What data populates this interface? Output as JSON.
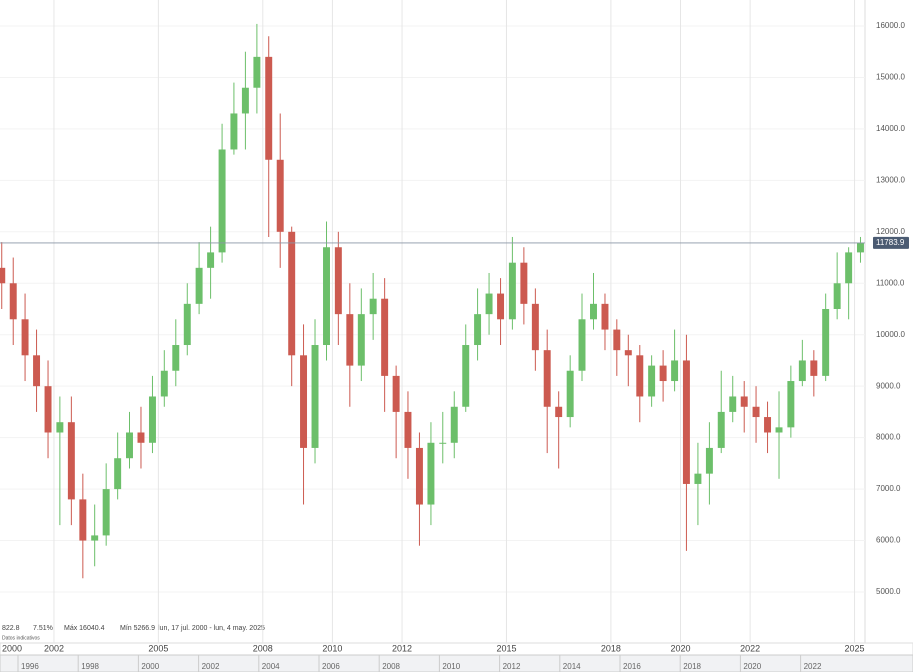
{
  "chart_data": {
    "type": "candlestick",
    "x": [
      2000.5,
      2000.83,
      2001.17,
      2001.5,
      2001.83,
      2002.17,
      2002.5,
      2002.83,
      2003.17,
      2003.5,
      2003.83,
      2004.17,
      2004.5,
      2004.83,
      2005.17,
      2005.5,
      2005.83,
      2006.17,
      2006.5,
      2006.83,
      2007.17,
      2007.5,
      2007.83,
      2008.17,
      2008.5,
      2008.83,
      2009.17,
      2009.5,
      2009.83,
      2010.17,
      2010.5,
      2010.83,
      2011.17,
      2011.5,
      2011.83,
      2012.17,
      2012.5,
      2012.83,
      2013.17,
      2013.5,
      2013.83,
      2014.17,
      2014.5,
      2014.83,
      2015.17,
      2015.5,
      2015.83,
      2016.17,
      2016.5,
      2016.83,
      2017.17,
      2017.5,
      2017.83,
      2018.17,
      2018.5,
      2018.83,
      2019.17,
      2019.5,
      2019.83,
      2020.17,
      2020.5,
      2020.83,
      2021.17,
      2021.5,
      2021.83,
      2022.17,
      2022.5,
      2022.83,
      2023.17,
      2023.5,
      2023.83,
      2024.17,
      2024.5,
      2024.83,
      2025.17
    ],
    "open": [
      11300,
      11000,
      10300,
      9600,
      9000,
      8100,
      8300,
      6800,
      6000,
      6100,
      7000,
      7600,
      8100,
      7900,
      8800,
      9300,
      9800,
      10600,
      11300,
      11600,
      13600,
      14300,
      14800,
      15400,
      13400,
      12000,
      9600,
      7800,
      9800,
      11700,
      10400,
      9400,
      10400,
      10700,
      9200,
      8500,
      7800,
      6700,
      7900,
      7900,
      8600,
      9800,
      10400,
      10800,
      10300,
      11400,
      10600,
      9700,
      8600,
      8400,
      9300,
      10300,
      10600,
      10100,
      9700,
      9600,
      8800,
      9400,
      9100,
      9500,
      7100,
      7300,
      7800,
      8500,
      8800,
      8600,
      8400,
      8100,
      8200,
      9100,
      9500,
      9200,
      10500,
      11000,
      11600
    ],
    "high": [
      11800,
      11500,
      10800,
      10100,
      9500,
      8800,
      8800,
      7300,
      6700,
      7500,
      8100,
      8500,
      8600,
      9200,
      9700,
      10300,
      11000,
      11800,
      12100,
      14100,
      14900,
      15500,
      16040.4,
      15800,
      14300,
      12100,
      10200,
      10300,
      12200,
      12000,
      11000,
      10900,
      11200,
      11100,
      9400,
      8900,
      8100,
      8300,
      8500,
      8900,
      10200,
      10900,
      11200,
      11100,
      11900,
      11700,
      10900,
      10100,
      8900,
      9600,
      10800,
      11200,
      10800,
      10300,
      10000,
      9800,
      9600,
      9700,
      10100,
      10000,
      7900,
      8300,
      9300,
      9200,
      9100,
      9000,
      8700,
      8900,
      9400,
      9900,
      9700,
      10800,
      11600,
      11700,
      11900
    ],
    "low": [
      10500,
      9800,
      9100,
      8500,
      7600,
      6300,
      6300,
      5266.9,
      5500,
      5900,
      6800,
      7400,
      7400,
      7700,
      8600,
      9000,
      9600,
      10400,
      10700,
      11400,
      13500,
      13600,
      14300,
      11900,
      11300,
      9000,
      6700,
      7500,
      9500,
      9800,
      8600,
      9100,
      9900,
      8500,
      7600,
      7200,
      5900,
      6300,
      7500,
      7600,
      8500,
      9500,
      10000,
      9800,
      10100,
      10200,
      9300,
      7700,
      7400,
      8200,
      9100,
      10100,
      9700,
      9200,
      9000,
      8300,
      8600,
      8700,
      8900,
      5800,
      6300,
      6700,
      7700,
      8300,
      8100,
      7900,
      7700,
      7200,
      8000,
      9000,
      8800,
      9100,
      10300,
      10300,
      11400
    ],
    "close": [
      11000,
      10300,
      9600,
      9000,
      8100,
      8300,
      6800,
      6000,
      6100,
      7000,
      7600,
      8100,
      7900,
      8800,
      9300,
      9800,
      10600,
      11300,
      11600,
      13600,
      14300,
      14800,
      15400,
      13400,
      12000,
      9600,
      7800,
      9800,
      11700,
      10400,
      9400,
      10400,
      10700,
      9200,
      8500,
      7800,
      6700,
      7900,
      7900,
      8600,
      9800,
      10400,
      10800,
      10300,
      11400,
      10600,
      9700,
      8600,
      8400,
      9300,
      10300,
      10600,
      10100,
      9700,
      9600,
      8800,
      9400,
      9100,
      9500,
      7100,
      7300,
      7800,
      8500,
      8800,
      8600,
      8400,
      8100,
      8200,
      9100,
      9500,
      9200,
      10500,
      11000,
      11600,
      11783.9
    ],
    "up_color": "#6cbf6a",
    "down_color": "#cc5a50",
    "xlim": [
      2000.45,
      2025.3
    ],
    "xticks": [
      2000,
      2002,
      2005,
      2008,
      2010,
      2012,
      2015,
      2018,
      2020,
      2022,
      2025
    ],
    "ylim": [
      4456,
      16505
    ],
    "yticks": [
      {
        "value": 5000,
        "label": "5000.0"
      },
      {
        "value": 6000,
        "label": "6000.0"
      },
      {
        "value": 7000,
        "label": "7000.0"
      },
      {
        "value": 8000,
        "label": "8000.0"
      },
      {
        "value": 9000,
        "label": "9000.0"
      },
      {
        "value": 10000,
        "label": "10000.0"
      },
      {
        "value": 11000,
        "label": "11000.0"
      },
      {
        "value": 12000,
        "label": "12000.0"
      },
      {
        "value": 13000,
        "label": "13000.0"
      },
      {
        "value": 14000,
        "label": "14000.0"
      },
      {
        "value": 15000,
        "label": "15000.0"
      },
      {
        "value": 16000,
        "label": "16000.0"
      }
    ],
    "grid": true,
    "stats": [
      "822.8",
      "7.51%",
      "Máx 16040.4",
      "Mín 5266.9",
      "lun, 17 jul. 2000 - lun, 4 may. 2025"
    ],
    "note": "Datos indicativos",
    "navigator": [
      "1996",
      "1998",
      "2000",
      "2002",
      "2004",
      "2006",
      "2008",
      "2010",
      "2012",
      "2014",
      "2016",
      "2018",
      "2020",
      "2022"
    ]
  }
}
